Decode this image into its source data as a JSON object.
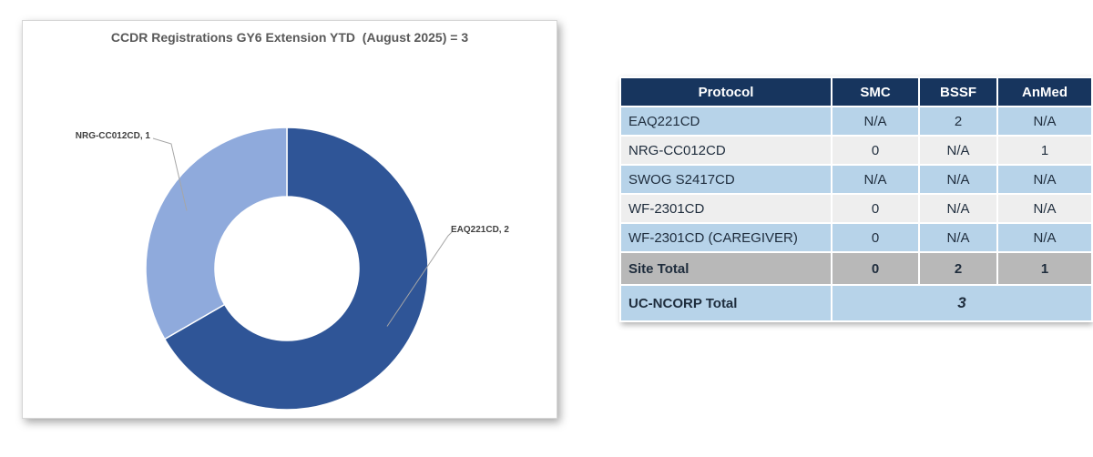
{
  "chart_data": {
    "type": "pie",
    "variant": "donut",
    "title": "CCDR Registrations GY6 Extension YTD  (August 2025) = 3",
    "slices": [
      {
        "label": "EAQ221CD, 2",
        "name": "EAQ221CD",
        "value": 2,
        "color": "#2f5597"
      },
      {
        "label": "NRG-CC012CD, 1",
        "name": "NRG-CC012CD",
        "value": 1,
        "color": "#8faadc"
      }
    ],
    "legend": "none"
  },
  "table": {
    "headers": [
      "Protocol",
      "SMC",
      "BSSF",
      "AnMed"
    ],
    "rows": [
      {
        "protocol": "EAQ221CD",
        "smc": "N/A",
        "bssf": "2",
        "anmed": "N/A"
      },
      {
        "protocol": "NRG-CC012CD",
        "smc": "0",
        "bssf": "N/A",
        "anmed": "1"
      },
      {
        "protocol": "SWOG S2417CD",
        "smc": "N/A",
        "bssf": "N/A",
        "anmed": "N/A"
      },
      {
        "protocol": "WF-2301CD",
        "smc": "0",
        "bssf": "N/A",
        "anmed": "N/A"
      },
      {
        "protocol": "WF-2301CD (CAREGIVER)",
        "smc": "0",
        "bssf": "N/A",
        "anmed": "N/A"
      }
    ],
    "site_total": {
      "label": "Site Total",
      "smc": "0",
      "bssf": "2",
      "anmed": "1"
    },
    "ucncorp_total": {
      "label": "UC-NCORP Total",
      "value": "3"
    }
  }
}
